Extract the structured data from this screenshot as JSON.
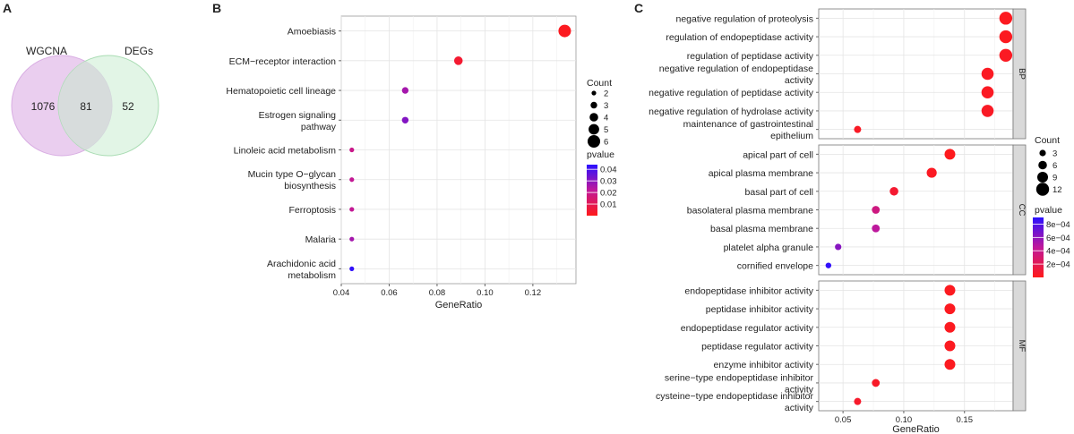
{
  "panels": {
    "a": {
      "letter": "A"
    },
    "b": {
      "letter": "B"
    },
    "c": {
      "letter": "C"
    }
  },
  "colors": {
    "venn_left": "#e6c6ec",
    "venn_right": "#cfeed5",
    "venn_overlap": "#d7dcdc",
    "p_low": "#ff1a1a",
    "p_mid": "#c0189a",
    "p_high": "#2a10ff"
  },
  "chart_data": [
    {
      "type": "venn",
      "sets": [
        {
          "name": "WGCNA",
          "only": "1076"
        },
        {
          "name": "DEGs",
          "only": "52"
        }
      ],
      "overlap": "81"
    },
    {
      "type": "scatter",
      "xlabel": "GeneRatio",
      "xlim": [
        0.04,
        0.138
      ],
      "xticks": [
        {
          "v": 0.04,
          "label": "0.04"
        },
        {
          "v": 0.06,
          "label": "0.06"
        },
        {
          "v": 0.08,
          "label": "0.08"
        },
        {
          "v": 0.1,
          "label": "0.10"
        },
        {
          "v": 0.12,
          "label": "0.12"
        }
      ],
      "terms": [
        {
          "label": [
            "Amoebiasis"
          ],
          "x": 0.1333,
          "count": 6,
          "p": 0.001
        },
        {
          "label": [
            "ECM−receptor interaction"
          ],
          "x": 0.0889,
          "count": 4,
          "p": 0.004
        },
        {
          "label": [
            "Hematopoietic cell lineage"
          ],
          "x": 0.0667,
          "count": 3,
          "p": 0.026
        },
        {
          "label": [
            "Estrogen signaling",
            "pathway"
          ],
          "x": 0.0667,
          "count": 3,
          "p": 0.031
        },
        {
          "label": [
            "Linoleic acid metabolism"
          ],
          "x": 0.0444,
          "count": 2,
          "p": 0.019
        },
        {
          "label": [
            "Mucin type O−glycan",
            "biosynthesis"
          ],
          "x": 0.0444,
          "count": 2,
          "p": 0.021
        },
        {
          "label": [
            "Ferroptosis"
          ],
          "x": 0.0444,
          "count": 2,
          "p": 0.021
        },
        {
          "label": [
            "Malaria"
          ],
          "x": 0.0444,
          "count": 2,
          "p": 0.026
        },
        {
          "label": [
            "Arachidonic acid",
            "metabolism"
          ],
          "x": 0.0444,
          "count": 2,
          "p": 0.043
        }
      ],
      "size_legend": {
        "title": "Count",
        "values": [
          2,
          3,
          4,
          5,
          6
        ]
      },
      "color_legend": {
        "title": "pvalue",
        "ticks": [
          {
            "v": 0.04,
            "label": "0.04"
          },
          {
            "v": 0.03,
            "label": "0.03"
          },
          {
            "v": 0.02,
            "label": "0.02"
          },
          {
            "v": 0.01,
            "label": "0.01"
          }
        ],
        "range": [
          0.0,
          0.044
        ]
      }
    },
    {
      "type": "scatter",
      "xlabel": "GeneRatio",
      "xlim": [
        0.03,
        0.19
      ],
      "xticks": [
        {
          "v": 0.05,
          "label": "0.05"
        },
        {
          "v": 0.1,
          "label": "0.10"
        },
        {
          "v": 0.15,
          "label": "0.15"
        }
      ],
      "facets": [
        {
          "name": "BP",
          "terms": [
            {
              "label": [
                "negative regulation of proteolysis"
              ],
              "x": 0.184,
              "count": 12,
              "p": 2e-05
            },
            {
              "label": [
                "regulation of endopeptidase activity"
              ],
              "x": 0.184,
              "count": 12,
              "p": 2e-05
            },
            {
              "label": [
                "regulation of peptidase activity"
              ],
              "x": 0.184,
              "count": 12,
              "p": 3e-05
            },
            {
              "label": [
                "negative regulation of endopeptidase",
                "activity"
              ],
              "x": 0.169,
              "count": 11,
              "p": 3e-05
            },
            {
              "label": [
                "negative regulation of peptidase activity"
              ],
              "x": 0.169,
              "count": 11,
              "p": 3e-05
            },
            {
              "label": [
                "negative regulation of hydrolase activity"
              ],
              "x": 0.169,
              "count": 11,
              "p": 4e-05
            },
            {
              "label": [
                "maintenance of gastrointestinal",
                "epithelium"
              ],
              "x": 0.062,
              "count": 4,
              "p": 4e-05
            }
          ]
        },
        {
          "name": "CC",
          "terms": [
            {
              "label": [
                "apical part of cell"
              ],
              "x": 0.138,
              "count": 9,
              "p": 1e-05
            },
            {
              "label": [
                "apical plasma membrane"
              ],
              "x": 0.123,
              "count": 8,
              "p": 3e-05
            },
            {
              "label": [
                "basal part of cell"
              ],
              "x": 0.092,
              "count": 6,
              "p": 8e-05
            },
            {
              "label": [
                "basolateral plasma membrane"
              ],
              "x": 0.077,
              "count": 5,
              "p": 0.00036
            },
            {
              "label": [
                "basal plasma membrane"
              ],
              "x": 0.077,
              "count": 5,
              "p": 0.00046
            },
            {
              "label": [
                "platelet alpha granule"
              ],
              "x": 0.046,
              "count": 3,
              "p": 0.00062
            },
            {
              "label": [
                "cornified envelope"
              ],
              "x": 0.038,
              "count": 2,
              "p": 0.00088
            }
          ]
        },
        {
          "name": "MF",
          "terms": [
            {
              "label": [
                "endopeptidase inhibitor activity"
              ],
              "x": 0.138,
              "count": 9,
              "p": 2e-05
            },
            {
              "label": [
                "peptidase inhibitor activity"
              ],
              "x": 0.138,
              "count": 9,
              "p": 2e-05
            },
            {
              "label": [
                "endopeptidase regulator activity"
              ],
              "x": 0.138,
              "count": 9,
              "p": 2e-05
            },
            {
              "label": [
                "peptidase regulator activity"
              ],
              "x": 0.138,
              "count": 9,
              "p": 2e-05
            },
            {
              "label": [
                "enzyme inhibitor activity"
              ],
              "x": 0.138,
              "count": 9,
              "p": 2e-05
            },
            {
              "label": [
                "serine−type endopeptidase inhibitor",
                "activity"
              ],
              "x": 0.077,
              "count": 5,
              "p": 5e-05
            },
            {
              "label": [
                "cysteine−type endopeptidase inhibitor",
                "activity"
              ],
              "x": 0.062,
              "count": 4,
              "p": 6e-05
            }
          ]
        }
      ],
      "size_legend": {
        "title": "Count",
        "values": [
          3,
          6,
          9,
          12
        ]
      },
      "color_legend": {
        "title": "pvalue",
        "ticks": [
          {
            "v": 0.0008,
            "label": "8e−04"
          },
          {
            "v": 0.0006,
            "label": "6e−04"
          },
          {
            "v": 0.0004,
            "label": "4e−04"
          },
          {
            "v": 0.0002,
            "label": "2e−04"
          }
        ],
        "range": [
          0.0,
          0.0009
        ]
      }
    }
  ]
}
